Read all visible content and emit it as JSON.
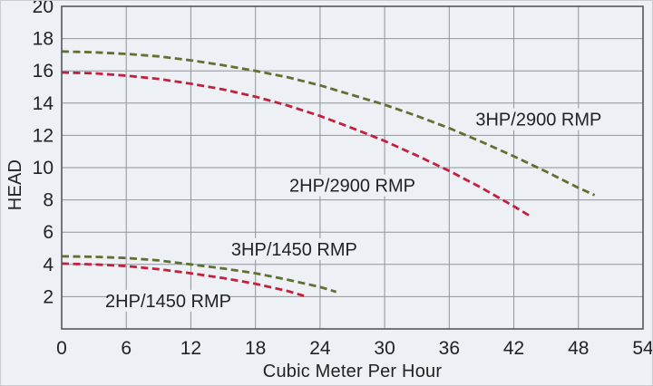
{
  "chart_data": {
    "type": "line",
    "title": "",
    "xlabel": "Cubic Meter Per Hour",
    "ylabel": "HEAD",
    "xlim": [
      0,
      54
    ],
    "ylim": [
      0,
      20
    ],
    "xticks": [
      0,
      6,
      12,
      18,
      24,
      30,
      36,
      42,
      48,
      54
    ],
    "yticks": [
      2,
      4,
      6,
      8,
      10,
      12,
      14,
      16,
      18,
      20
    ],
    "grid": true,
    "legend_position": "inline-labels-on-plot",
    "line_style": "dashed",
    "colors": {
      "background": "#edf0f4",
      "grid": "#909599",
      "border": "#54585c",
      "text": "#202326",
      "green_curve": "#5f7130",
      "red_curve": "#c2203e"
    },
    "series": [
      {
        "id": "3hp-2900",
        "name": "3HP/2900 RMP",
        "color": "#5f7130",
        "line_style": "dashed",
        "label_x": 44.3,
        "label_y": 13.0,
        "points": [
          [
            0,
            17.2
          ],
          [
            3,
            17.15
          ],
          [
            6,
            17.05
          ],
          [
            9,
            16.9
          ],
          [
            12,
            16.65
          ],
          [
            15,
            16.35
          ],
          [
            18,
            16.0
          ],
          [
            21,
            15.6
          ],
          [
            24,
            15.1
          ],
          [
            27,
            14.5
          ],
          [
            30,
            13.9
          ],
          [
            33,
            13.2
          ],
          [
            36,
            12.45
          ],
          [
            39,
            11.6
          ],
          [
            42,
            10.7
          ],
          [
            45,
            9.75
          ],
          [
            48,
            8.75
          ],
          [
            49.5,
            8.3
          ]
        ]
      },
      {
        "id": "2hp-2900",
        "name": "2HP/2900 RMP",
        "color": "#c2203e",
        "line_style": "dashed",
        "label_x": 27.0,
        "label_y": 8.9,
        "points": [
          [
            0,
            15.9
          ],
          [
            3,
            15.85
          ],
          [
            6,
            15.7
          ],
          [
            9,
            15.5
          ],
          [
            12,
            15.2
          ],
          [
            15,
            14.85
          ],
          [
            18,
            14.4
          ],
          [
            21,
            13.85
          ],
          [
            24,
            13.2
          ],
          [
            27,
            12.45
          ],
          [
            30,
            11.65
          ],
          [
            33,
            10.75
          ],
          [
            36,
            9.8
          ],
          [
            39,
            8.75
          ],
          [
            42,
            7.6
          ],
          [
            43.5,
            7.0
          ]
        ]
      },
      {
        "id": "3hp-1450",
        "name": "3HP/1450 RMP",
        "color": "#5f7130",
        "line_style": "dashed",
        "label_x": 21.6,
        "label_y": 4.95,
        "points": [
          [
            0,
            4.5
          ],
          [
            3,
            4.47
          ],
          [
            6,
            4.4
          ],
          [
            9,
            4.25
          ],
          [
            12,
            4.0
          ],
          [
            15,
            3.75
          ],
          [
            18,
            3.45
          ],
          [
            21,
            3.05
          ],
          [
            24,
            2.6
          ],
          [
            25.5,
            2.3
          ]
        ]
      },
      {
        "id": "2hp-1450",
        "name": "2HP/1450 RMP",
        "color": "#c2203e",
        "line_style": "dashed",
        "label_x": 9.9,
        "label_y": 1.75,
        "points": [
          [
            0,
            4.05
          ],
          [
            3,
            4.0
          ],
          [
            6,
            3.9
          ],
          [
            9,
            3.7
          ],
          [
            12,
            3.45
          ],
          [
            15,
            3.15
          ],
          [
            18,
            2.8
          ],
          [
            21,
            2.35
          ],
          [
            22.5,
            2.05
          ]
        ]
      }
    ]
  }
}
